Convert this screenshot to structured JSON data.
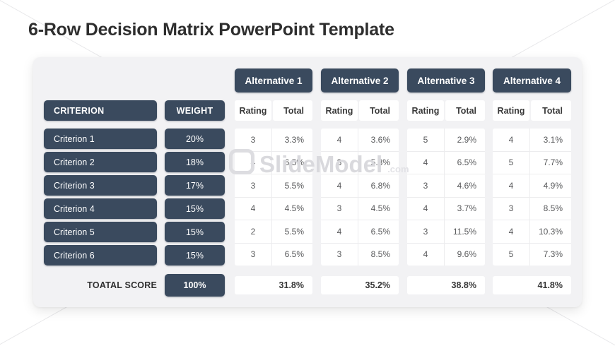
{
  "title": "6-Row Decision Matrix PowerPoint Template",
  "watermark": {
    "brand": "SlideModel",
    "suffix": ".com"
  },
  "colors": {
    "accent_dark": "#3a4a5e",
    "card_background": "#f2f2f4",
    "cell_background": "#ffffff"
  },
  "table": {
    "criterion_header": "CRITERION",
    "weight_header": "WEIGHT",
    "rating_header": "Rating",
    "total_header": "Total",
    "alternatives": [
      "Alternative 1",
      "Alternative 2",
      "Alternative 3",
      "Alternative 4"
    ],
    "rows": [
      {
        "criterion": "Criterion 1",
        "weight": "20%",
        "ratings": [
          "3",
          "4",
          "5",
          "4"
        ],
        "totals": [
          "3.3%",
          "3.6%",
          "2.9%",
          "3.1%"
        ]
      },
      {
        "criterion": "Criterion 2",
        "weight": "18%",
        "ratings": [
          "4",
          "3",
          "4",
          "5"
        ],
        "totals": [
          "6.5%",
          "5.3%",
          "6.5%",
          "7.7%"
        ]
      },
      {
        "criterion": "Criterion 3",
        "weight": "17%",
        "ratings": [
          "3",
          "4",
          "3",
          "4"
        ],
        "totals": [
          "5.5%",
          "6.8%",
          "4.6%",
          "4.9%"
        ]
      },
      {
        "criterion": "Criterion 4",
        "weight": "15%",
        "ratings": [
          "4",
          "3",
          "4",
          "3"
        ],
        "totals": [
          "4.5%",
          "4.5%",
          "3.7%",
          "8.5%"
        ]
      },
      {
        "criterion": "Criterion 5",
        "weight": "15%",
        "ratings": [
          "2",
          "4",
          "3",
          "4"
        ],
        "totals": [
          "5.5%",
          "6.5%",
          "11.5%",
          "10.3%"
        ]
      },
      {
        "criterion": "Criterion 6",
        "weight": "15%",
        "ratings": [
          "3",
          "3",
          "4",
          "5"
        ],
        "totals": [
          "6.5%",
          "8.5%",
          "9.6%",
          "7.3%"
        ]
      }
    ],
    "total_row": {
      "label": "TOATAL SCORE",
      "weight": "100%",
      "totals": [
        "31.8%",
        "35.2%",
        "38.8%",
        "41.8%"
      ]
    }
  }
}
